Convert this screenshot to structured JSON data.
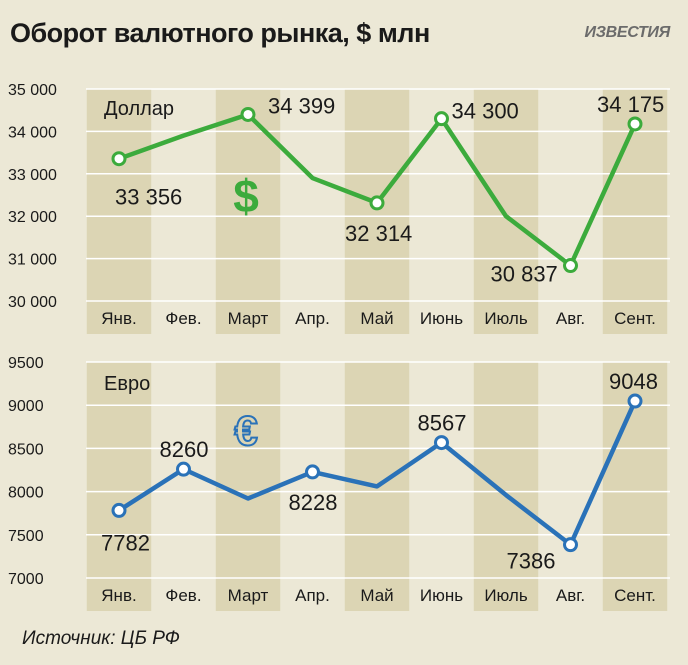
{
  "title": "Оборот валютного рынка, $ млн",
  "brand": "ИЗВЕСТИЯ",
  "source": "Источник: ЦБ РФ",
  "chart_data": [
    {
      "type": "line",
      "series_name": "Доллар",
      "symbol": "$",
      "color": "#3cab3c",
      "categories": [
        "Янв.",
        "Фев.",
        "Март",
        "Апр.",
        "Май",
        "Июнь",
        "Июль",
        "Авг.",
        "Сент."
      ],
      "values": [
        33356,
        33900,
        34399,
        32900,
        32314,
        34300,
        32000,
        30837,
        34175
      ],
      "labeled": [
        true,
        false,
        true,
        false,
        true,
        true,
        false,
        true,
        true
      ],
      "labels": [
        "33 356",
        "",
        "34 399",
        "",
        "32 314",
        "34 300",
        "",
        "30 837",
        "34 175"
      ],
      "ylim": [
        30000,
        35000
      ],
      "yticks": [
        30000,
        31000,
        32000,
        33000,
        34000,
        35000
      ],
      "ytick_labels": [
        "30 000",
        "31 000",
        "32 000",
        "33 000",
        "34 000",
        "35 000"
      ]
    },
    {
      "type": "line",
      "series_name": "Евро",
      "symbol": "€",
      "color": "#2a72b8",
      "categories": [
        "Янв.",
        "Фев.",
        "Март",
        "Апр.",
        "Май",
        "Июнь",
        "Июль",
        "Авг.",
        "Сент."
      ],
      "values": [
        7782,
        8260,
        7920,
        8228,
        8060,
        8567,
        7960,
        7386,
        9048
      ],
      "labeled": [
        true,
        true,
        false,
        true,
        false,
        true,
        false,
        true,
        true
      ],
      "labels": [
        "7782",
        "8260",
        "",
        "8228",
        "",
        "8567",
        "",
        "7386",
        "9048"
      ],
      "ylim": [
        7000,
        9500
      ],
      "yticks": [
        7000,
        7500,
        8000,
        8500,
        9000,
        9500
      ],
      "ytick_labels": [
        "7000",
        "7500",
        "8000",
        "8500",
        "9000",
        "9500"
      ]
    }
  ]
}
